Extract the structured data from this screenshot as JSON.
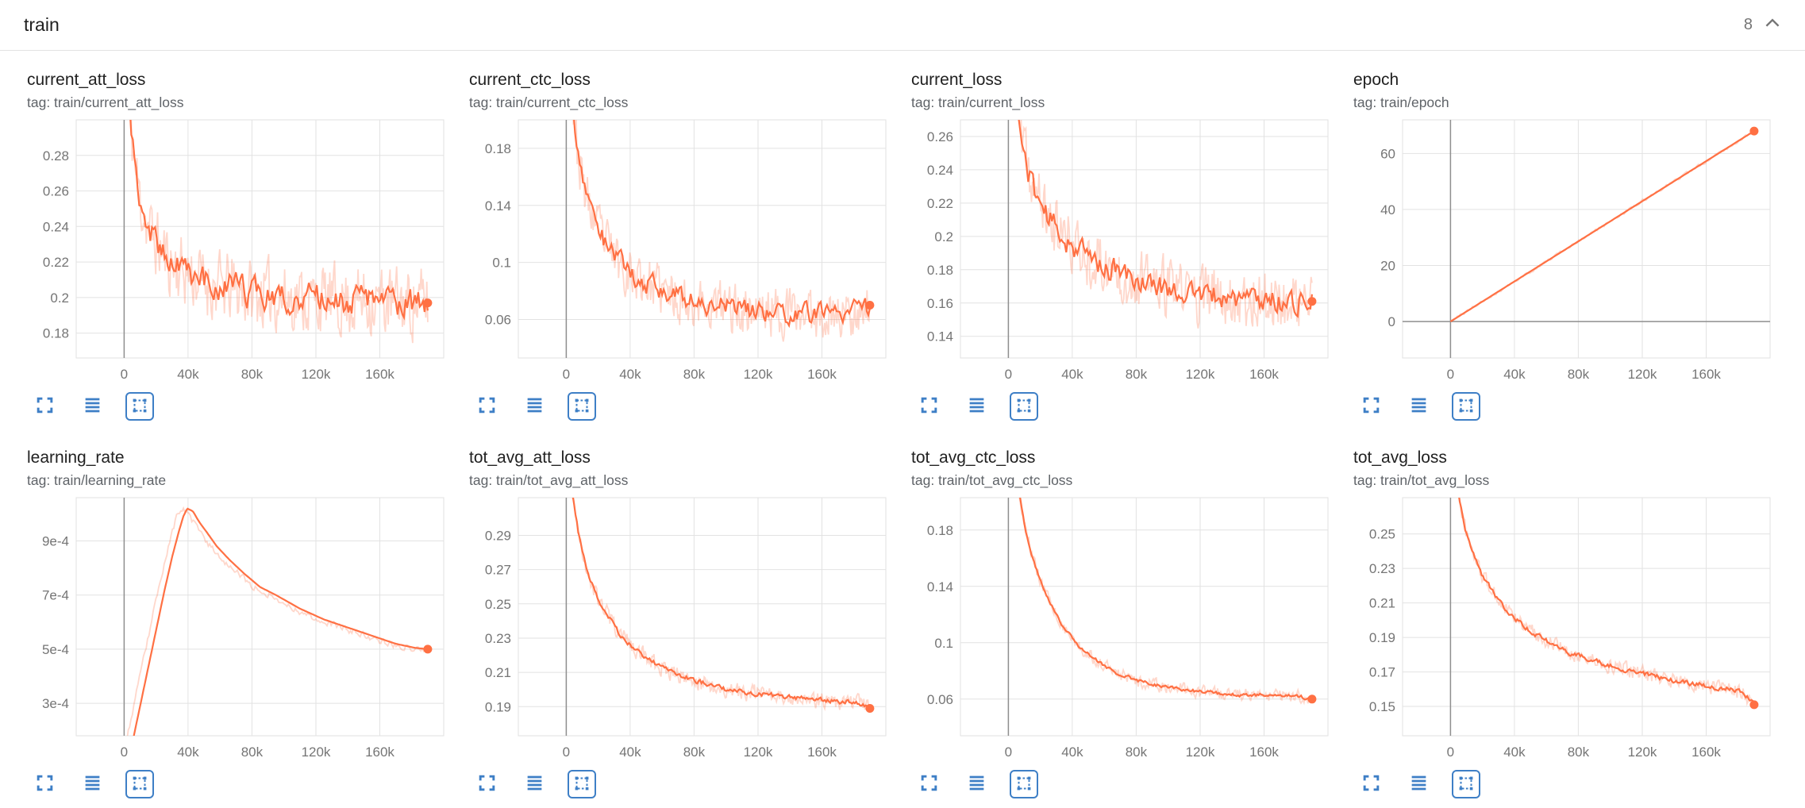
{
  "header": {
    "title": "train",
    "count": "8"
  },
  "colors": {
    "line": "#ff7043",
    "raw_opacity": 0.28,
    "grid": "#e2e2e2",
    "axis_zero": "#8f8f8f",
    "tick_text": "#757575",
    "icon": "#3e7fc6"
  },
  "icons": {
    "header_collapse": "chevron-up-icon",
    "card_toolbar": [
      "expand-icon",
      "data-table-icon",
      "fit-domain-icon"
    ],
    "fit_domain_active": true
  },
  "x_axis": {
    "domain": [
      -30000,
      200000
    ],
    "ticks": [
      {
        "v": 0,
        "label": "0"
      },
      {
        "v": 40000,
        "label": "40k"
      },
      {
        "v": 80000,
        "label": "80k"
      },
      {
        "v": 120000,
        "label": "120k"
      },
      {
        "v": 160000,
        "label": "160k"
      }
    ]
  },
  "chart_data": [
    {
      "type": "line",
      "title": "current_att_loss",
      "tag": "tag: train/current_att_loss",
      "y_domain": [
        0.166,
        0.3
      ],
      "y_ticks": [
        {
          "v": 0.18,
          "label": "0.18"
        },
        {
          "v": 0.2,
          "label": "0.2"
        },
        {
          "v": 0.22,
          "label": "0.22"
        },
        {
          "v": 0.24,
          "label": "0.24"
        },
        {
          "v": 0.26,
          "label": "0.26"
        },
        {
          "v": 0.28,
          "label": "0.28"
        }
      ],
      "trend": [
        [
          1500,
          0.335
        ],
        [
          4000,
          0.3
        ],
        [
          7000,
          0.272
        ],
        [
          10000,
          0.255
        ],
        [
          15000,
          0.24
        ],
        [
          20000,
          0.231
        ],
        [
          27000,
          0.222
        ],
        [
          35000,
          0.216
        ],
        [
          45000,
          0.211
        ],
        [
          55000,
          0.207
        ],
        [
          70000,
          0.204
        ],
        [
          85000,
          0.202
        ],
        [
          100000,
          0.2
        ],
        [
          120000,
          0.199
        ],
        [
          140000,
          0.198
        ],
        [
          160000,
          0.198
        ],
        [
          175000,
          0.197
        ],
        [
          190000,
          0.197
        ]
      ],
      "noise": 0.009,
      "raw_noise": 0.02,
      "raw_shift": 0,
      "samples": 190,
      "raw_samples": 320,
      "seed": 11,
      "end_dot": true,
      "zero_y_line": false
    },
    {
      "type": "line",
      "title": "current_ctc_loss",
      "tag": "tag: train/current_ctc_loss",
      "y_domain": [
        0.033,
        0.2
      ],
      "y_ticks": [
        {
          "v": 0.06,
          "label": "0.06"
        },
        {
          "v": 0.1,
          "label": "0.1"
        },
        {
          "v": 0.14,
          "label": "0.14"
        },
        {
          "v": 0.18,
          "label": "0.18"
        }
      ],
      "trend": [
        [
          1500,
          0.29
        ],
        [
          4000,
          0.215
        ],
        [
          7000,
          0.178
        ],
        [
          10000,
          0.157
        ],
        [
          14000,
          0.14
        ],
        [
          19000,
          0.126
        ],
        [
          25000,
          0.113
        ],
        [
          32000,
          0.102
        ],
        [
          40000,
          0.093
        ],
        [
          50000,
          0.086
        ],
        [
          62000,
          0.079
        ],
        [
          75000,
          0.074
        ],
        [
          90000,
          0.07
        ],
        [
          105000,
          0.068
        ],
        [
          120000,
          0.066
        ],
        [
          140000,
          0.065
        ],
        [
          160000,
          0.064
        ],
        [
          175000,
          0.064
        ],
        [
          190000,
          0.07
        ]
      ],
      "noise": 0.008,
      "raw_noise": 0.018,
      "raw_shift": 0,
      "samples": 190,
      "raw_samples": 320,
      "seed": 23,
      "end_dot": true,
      "zero_y_line": false
    },
    {
      "type": "line",
      "title": "current_loss",
      "tag": "tag: train/current_loss",
      "y_domain": [
        0.127,
        0.27
      ],
      "y_ticks": [
        {
          "v": 0.14,
          "label": "0.14"
        },
        {
          "v": 0.16,
          "label": "0.16"
        },
        {
          "v": 0.18,
          "label": "0.18"
        },
        {
          "v": 0.2,
          "label": "0.2"
        },
        {
          "v": 0.22,
          "label": "0.22"
        },
        {
          "v": 0.24,
          "label": "0.24"
        },
        {
          "v": 0.26,
          "label": "0.26"
        }
      ],
      "trend": [
        [
          1500,
          0.33
        ],
        [
          4000,
          0.292
        ],
        [
          7000,
          0.265
        ],
        [
          10000,
          0.248
        ],
        [
          14000,
          0.234
        ],
        [
          19000,
          0.222
        ],
        [
          25000,
          0.211
        ],
        [
          32000,
          0.202
        ],
        [
          40000,
          0.195
        ],
        [
          50000,
          0.188
        ],
        [
          62000,
          0.181
        ],
        [
          75000,
          0.176
        ],
        [
          90000,
          0.171
        ],
        [
          105000,
          0.168
        ],
        [
          120000,
          0.165
        ],
        [
          140000,
          0.163
        ],
        [
          160000,
          0.162
        ],
        [
          175000,
          0.161
        ],
        [
          190000,
          0.161
        ]
      ],
      "noise": 0.008,
      "raw_noise": 0.018,
      "raw_shift": 0,
      "samples": 190,
      "raw_samples": 320,
      "seed": 37,
      "end_dot": true,
      "zero_y_line": false
    },
    {
      "type": "line",
      "title": "epoch",
      "tag": "tag: train/epoch",
      "y_domain": [
        -13,
        72
      ],
      "y_ticks": [
        {
          "v": 0,
          "label": "0"
        },
        {
          "v": 20,
          "label": "20"
        },
        {
          "v": 40,
          "label": "40"
        },
        {
          "v": 60,
          "label": "60"
        }
      ],
      "trend": [
        [
          0,
          0
        ],
        [
          190000,
          68
        ]
      ],
      "noise": 0,
      "raw_noise": 0.6,
      "raw_shift": 0,
      "samples": 140,
      "raw_samples": 180,
      "seed": 41,
      "end_dot": true,
      "zero_y_line": true
    },
    {
      "type": "line",
      "title": "learning_rate",
      "tag": "tag: train/learning_rate",
      "y_domain": [
        0.00018,
        0.00106
      ],
      "y_ticks": [
        {
          "v": 0.0003,
          "label": "3e-4"
        },
        {
          "v": 0.0005,
          "label": "5e-4"
        },
        {
          "v": 0.0007,
          "label": "7e-4"
        },
        {
          "v": 0.0009,
          "label": "9e-4"
        }
      ],
      "trend": [
        [
          0,
          2e-05
        ],
        [
          5000,
          0.00015
        ],
        [
          10000,
          0.00029
        ],
        [
          15000,
          0.00043
        ],
        [
          20000,
          0.00057
        ],
        [
          25000,
          0.00071
        ],
        [
          30000,
          0.00084
        ],
        [
          34000,
          0.00093
        ],
        [
          37000,
          0.00099
        ],
        [
          39500,
          0.00102
        ],
        [
          43000,
          0.00101
        ],
        [
          47000,
          0.00097
        ],
        [
          52000,
          0.00093
        ],
        [
          58000,
          0.00088
        ],
        [
          66000,
          0.00083
        ],
        [
          75000,
          0.00078
        ],
        [
          85000,
          0.00073
        ],
        [
          95000,
          0.0007
        ],
        [
          110000,
          0.00065
        ],
        [
          125000,
          0.00061
        ],
        [
          140000,
          0.00058
        ],
        [
          155000,
          0.00055
        ],
        [
          170000,
          0.00052
        ],
        [
          182000,
          0.000505
        ],
        [
          190000,
          0.0005
        ]
      ],
      "noise": 0,
      "raw_noise": 1.2e-05,
      "raw_shift": 4000,
      "samples": 220,
      "raw_samples": 220,
      "seed": 53,
      "end_dot": true,
      "zero_y_line": false
    },
    {
      "type": "line",
      "title": "tot_avg_att_loss",
      "tag": "tag: train/tot_avg_att_loss",
      "y_domain": [
        0.173,
        0.312
      ],
      "y_ticks": [
        {
          "v": 0.19,
          "label": "0.19"
        },
        {
          "v": 0.21,
          "label": "0.21"
        },
        {
          "v": 0.23,
          "label": "0.23"
        },
        {
          "v": 0.25,
          "label": "0.25"
        },
        {
          "v": 0.27,
          "label": "0.27"
        },
        {
          "v": 0.29,
          "label": "0.29"
        }
      ],
      "trend": [
        [
          1500,
          0.33
        ],
        [
          4000,
          0.313
        ],
        [
          7000,
          0.295
        ],
        [
          10000,
          0.28
        ],
        [
          13000,
          0.27
        ],
        [
          16000,
          0.262
        ],
        [
          20000,
          0.253
        ],
        [
          24000,
          0.246
        ],
        [
          28000,
          0.24
        ],
        [
          33000,
          0.233
        ],
        [
          38000,
          0.228
        ],
        [
          44000,
          0.223
        ],
        [
          50000,
          0.219
        ],
        [
          58000,
          0.214
        ],
        [
          66000,
          0.21
        ],
        [
          75000,
          0.207
        ],
        [
          85000,
          0.204
        ],
        [
          95000,
          0.201
        ],
        [
          105000,
          0.199
        ],
        [
          115000,
          0.198
        ],
        [
          125000,
          0.197
        ],
        [
          135000,
          0.196
        ],
        [
          145000,
          0.195
        ],
        [
          155000,
          0.194
        ],
        [
          165000,
          0.193
        ],
        [
          175000,
          0.193
        ],
        [
          183000,
          0.192
        ],
        [
          190000,
          0.189
        ]
      ],
      "noise": 0.0015,
      "raw_noise": 0.005,
      "raw_shift": 0,
      "samples": 220,
      "raw_samples": 300,
      "seed": 67,
      "end_dot": true,
      "zero_y_line": false
    },
    {
      "type": "line",
      "title": "tot_avg_ctc_loss",
      "tag": "tag: train/tot_avg_ctc_loss",
      "y_domain": [
        0.034,
        0.203
      ],
      "y_ticks": [
        {
          "v": 0.06,
          "label": "0.06"
        },
        {
          "v": 0.1,
          "label": "0.1"
        },
        {
          "v": 0.14,
          "label": "0.14"
        },
        {
          "v": 0.18,
          "label": "0.18"
        }
      ],
      "trend": [
        [
          1500,
          0.265
        ],
        [
          3500,
          0.238
        ],
        [
          6000,
          0.213
        ],
        [
          8500,
          0.194
        ],
        [
          11000,
          0.179
        ],
        [
          14000,
          0.165
        ],
        [
          17000,
          0.154
        ],
        [
          21000,
          0.141
        ],
        [
          25000,
          0.131
        ],
        [
          29000,
          0.122
        ],
        [
          34000,
          0.112
        ],
        [
          39000,
          0.105
        ],
        [
          44000,
          0.098
        ],
        [
          50000,
          0.092
        ],
        [
          57000,
          0.086
        ],
        [
          65000,
          0.08
        ],
        [
          73000,
          0.076
        ],
        [
          82000,
          0.073
        ],
        [
          92000,
          0.07
        ],
        [
          102000,
          0.068
        ],
        [
          115000,
          0.066
        ],
        [
          130000,
          0.064
        ],
        [
          145000,
          0.063
        ],
        [
          160000,
          0.063
        ],
        [
          172000,
          0.062
        ],
        [
          182000,
          0.062
        ],
        [
          190000,
          0.06
        ]
      ],
      "noise": 0.0013,
      "raw_noise": 0.0045,
      "raw_shift": 0,
      "samples": 220,
      "raw_samples": 300,
      "seed": 79,
      "end_dot": true,
      "zero_y_line": false
    },
    {
      "type": "line",
      "title": "tot_avg_loss",
      "tag": "tag: train/tot_avg_loss",
      "y_domain": [
        0.133,
        0.271
      ],
      "y_ticks": [
        {
          "v": 0.15,
          "label": "0.15"
        },
        {
          "v": 0.17,
          "label": "0.17"
        },
        {
          "v": 0.19,
          "label": "0.19"
        },
        {
          "v": 0.21,
          "label": "0.21"
        },
        {
          "v": 0.23,
          "label": "0.23"
        },
        {
          "v": 0.25,
          "label": "0.25"
        }
      ],
      "trend": [
        [
          1500,
          0.3
        ],
        [
          4000,
          0.28
        ],
        [
          7000,
          0.263
        ],
        [
          10000,
          0.25
        ],
        [
          13000,
          0.241
        ],
        [
          16000,
          0.234
        ],
        [
          20000,
          0.226
        ],
        [
          24000,
          0.22
        ],
        [
          28000,
          0.214
        ],
        [
          33000,
          0.208
        ],
        [
          38000,
          0.203
        ],
        [
          44000,
          0.198
        ],
        [
          50000,
          0.194
        ],
        [
          58000,
          0.189
        ],
        [
          66000,
          0.185
        ],
        [
          75000,
          0.181
        ],
        [
          85000,
          0.178
        ],
        [
          95000,
          0.175
        ],
        [
          105000,
          0.172
        ],
        [
          115000,
          0.17
        ],
        [
          125000,
          0.168
        ],
        [
          135000,
          0.166
        ],
        [
          145000,
          0.164
        ],
        [
          155000,
          0.163
        ],
        [
          165000,
          0.161
        ],
        [
          175000,
          0.16
        ],
        [
          183000,
          0.158
        ],
        [
          190000,
          0.151
        ]
      ],
      "noise": 0.0015,
      "raw_noise": 0.0045,
      "raw_shift": 0,
      "samples": 220,
      "raw_samples": 300,
      "seed": 97,
      "end_dot": true,
      "zero_y_line": false
    }
  ]
}
